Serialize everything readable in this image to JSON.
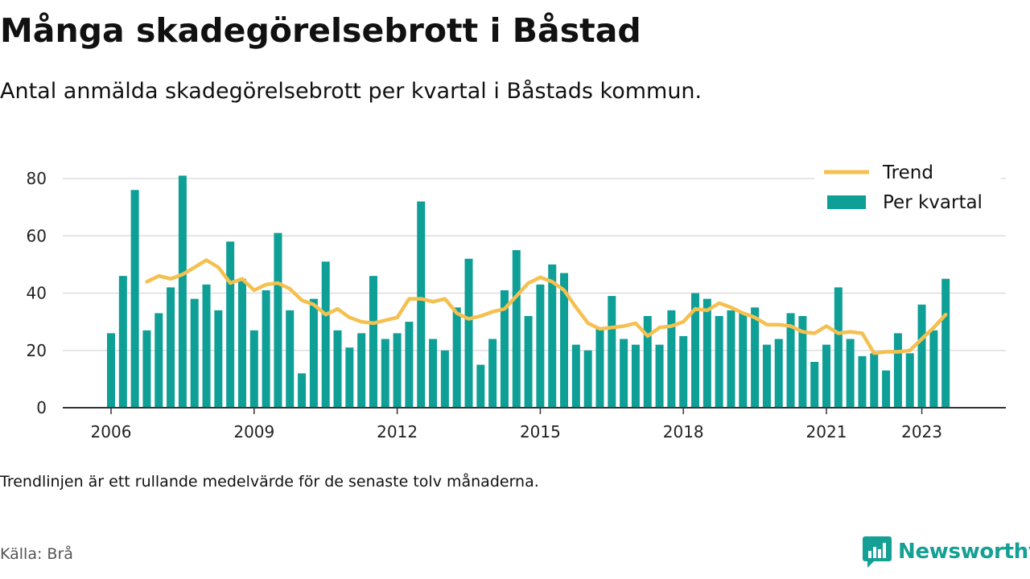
{
  "title": "Många skadegörelsebrott i Båstad",
  "subtitle": "Antal anmälda skadegörelsebrott per kvartal i Båstads kommun.",
  "note": "Trendlinjen är ett rullande medelvärde för de senaste tolv månaderna.",
  "source": "Källa: Brå",
  "logo_text": "Newsworthy",
  "colors": {
    "bar": "#0e9f96",
    "trend": "#f5c04f",
    "grid": "#dddddd",
    "axis": "#333333",
    "brand": "#14a095"
  },
  "chart_data": {
    "type": "bar",
    "x_start": 2006.0,
    "x_step": 0.25,
    "xlim": [
      2006.0,
      2023.75
    ],
    "ylim": [
      0,
      80
    ],
    "y_ticks": [
      0,
      20,
      40,
      60,
      80
    ],
    "x_ticks": [
      2006,
      2009,
      2012,
      2015,
      2018,
      2021,
      2023
    ],
    "grid": true,
    "legend_position": "top-right",
    "series": [
      {
        "name": "Per kvartal",
        "type": "bar",
        "values": [
          26,
          46,
          76,
          27,
          33,
          42,
          81,
          38,
          43,
          34,
          58,
          45,
          27,
          41,
          61,
          34,
          12,
          38,
          51,
          27,
          21,
          26,
          46,
          24,
          26,
          30,
          72,
          24,
          20,
          35,
          52,
          15,
          24,
          41,
          55,
          32,
          43,
          50,
          47,
          22,
          20,
          28,
          39,
          24,
          22,
          32,
          22,
          34,
          25,
          40,
          38,
          32,
          34,
          33,
          35,
          22,
          24,
          33,
          32,
          16,
          22,
          42,
          24,
          18,
          19,
          13,
          26,
          19,
          36,
          27,
          45
        ]
      },
      {
        "name": "Trend",
        "type": "line",
        "values": [
          null,
          null,
          null,
          44,
          46,
          45,
          46.5,
          49,
          51.5,
          49,
          43.5,
          45,
          41,
          43,
          43.5,
          41.5,
          37.5,
          36,
          32.5,
          34.5,
          31.5,
          30,
          29.5,
          30.5,
          31.5,
          38,
          38,
          37,
          38,
          33,
          31,
          32,
          33.5,
          34.5,
          39,
          43.5,
          45.5,
          44,
          41,
          35,
          29.5,
          27.5,
          28,
          28.5,
          29.5,
          25,
          28,
          28.5,
          30,
          34.5,
          34,
          36.5,
          35,
          33,
          31.5,
          29,
          29,
          28.5,
          26.5,
          26,
          28.5,
          26,
          26.5,
          26,
          19,
          19.5,
          19.5,
          20,
          24,
          28,
          32.5
        ]
      }
    ]
  }
}
